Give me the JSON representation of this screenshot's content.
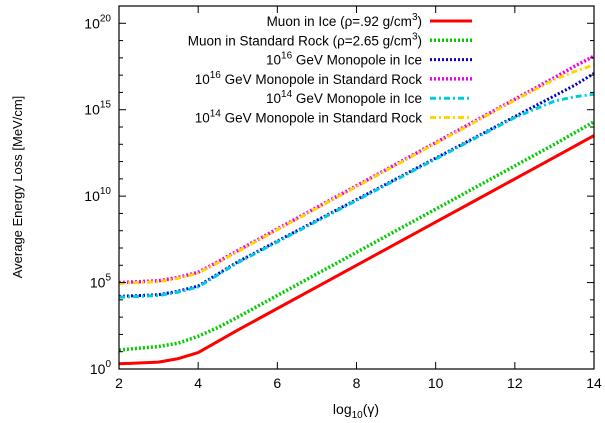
{
  "chart_data": {
    "type": "line",
    "xlabel": "log10(γ)",
    "ylabel": "Average Energy Loss [MeV/cm]",
    "xlim": [
      2,
      14
    ],
    "ylim_log10": [
      0,
      21
    ],
    "yscale": "log",
    "grid": false,
    "legend_position": "top-right",
    "x_ticks": [
      2,
      4,
      6,
      8,
      10,
      12,
      14
    ],
    "y_ticks": [
      {
        "exp": 0,
        "label": "10^0"
      },
      {
        "exp": 5,
        "label": "10^5"
      },
      {
        "exp": 10,
        "label": "10^10"
      },
      {
        "exp": 15,
        "label": "10^15"
      },
      {
        "exp": 20,
        "label": "10^20"
      }
    ],
    "series": [
      {
        "name": "Muon in Ice (ρ=.92 g/cm^3)",
        "legend": {
          "pre": "Muon in Ice (ρ=.92 g/cm",
          "sup": "3",
          "post": ")"
        },
        "color": "#ff0000",
        "style": "solid",
        "x": [
          2,
          3,
          3.5,
          4,
          4.5,
          5,
          6,
          7,
          8,
          9,
          10,
          11,
          12,
          13,
          14
        ],
        "log10_y": [
          0.3,
          0.4,
          0.6,
          0.95,
          1.6,
          2.25,
          3.5,
          4.75,
          6.0,
          7.25,
          8.5,
          9.75,
          11.0,
          12.25,
          13.5
        ]
      },
      {
        "name": "Muon in Standard Rock (ρ=2.65 g/cm^3)",
        "legend": {
          "pre": "Muon in Standard Rock (ρ=2.65 g/cm",
          "sup": "3",
          "post": ")"
        },
        "color": "#00cc00",
        "style": "dotted-thick",
        "x": [
          2,
          3,
          3.5,
          4,
          4.5,
          5,
          6,
          7,
          8,
          9,
          10,
          11,
          12,
          13,
          14
        ],
        "log10_y": [
          1.1,
          1.3,
          1.5,
          1.9,
          2.4,
          3.0,
          4.25,
          5.5,
          6.75,
          8.0,
          9.25,
          10.5,
          11.75,
          13.0,
          14.3
        ]
      },
      {
        "name": "10^16 GeV Monopole in Ice",
        "legend": {
          "pre": "10",
          "sup": "16",
          "post": " GeV Monopole in Ice"
        },
        "color": "#0000cc",
        "style": "dotted",
        "x": [
          2,
          3,
          3.5,
          4,
          4.5,
          5,
          6,
          7,
          8,
          9,
          10,
          11,
          12,
          13,
          13.5,
          14
        ],
        "log10_y": [
          4.2,
          4.3,
          4.5,
          4.8,
          5.5,
          6.2,
          7.4,
          8.6,
          9.8,
          11.0,
          12.2,
          13.4,
          14.6,
          15.8,
          16.4,
          17.1
        ]
      },
      {
        "name": "10^16 GeV Monopole in Standard Rock",
        "legend": {
          "pre": "10",
          "sup": "16",
          "post": " GeV Monopole in Standard Rock"
        },
        "color": "#ee00ee",
        "style": "dotted-thick",
        "x": [
          2,
          3,
          3.5,
          4,
          4.5,
          5,
          6,
          7,
          8,
          9,
          10,
          11,
          12,
          13,
          13.5,
          14
        ],
        "log10_y": [
          5.0,
          5.1,
          5.3,
          5.6,
          6.2,
          6.85,
          8.1,
          9.35,
          10.6,
          11.85,
          13.1,
          14.35,
          15.6,
          16.85,
          17.5,
          18.1
        ]
      },
      {
        "name": "10^14 GeV Monopole in Ice",
        "legend": {
          "pre": "10",
          "sup": "14",
          "post": " GeV Monopole in Ice"
        },
        "color": "#00ccdd",
        "style": "dashdot",
        "x": [
          2,
          3,
          3.5,
          4,
          4.5,
          5,
          6,
          7,
          8,
          9,
          10,
          11,
          12,
          13,
          13.5,
          14
        ],
        "log10_y": [
          4.15,
          4.25,
          4.45,
          4.75,
          5.45,
          6.15,
          7.35,
          8.55,
          9.75,
          10.95,
          12.15,
          13.35,
          14.55,
          15.5,
          15.75,
          15.9
        ]
      },
      {
        "name": "10^14 GeV Monopole in Standard Rock",
        "legend": {
          "pre": "10",
          "sup": "14",
          "post": " GeV Monopole in Standard Rock"
        },
        "color": "#ffd700",
        "style": "dashdot",
        "x": [
          2,
          3,
          3.5,
          4,
          4.5,
          5,
          6,
          7,
          8,
          9,
          10,
          11,
          12,
          13,
          13.5,
          14
        ],
        "log10_y": [
          4.95,
          5.05,
          5.25,
          5.55,
          6.15,
          6.8,
          8.05,
          9.3,
          10.55,
          11.8,
          13.05,
          14.3,
          15.55,
          16.75,
          17.2,
          17.6
        ]
      }
    ]
  }
}
